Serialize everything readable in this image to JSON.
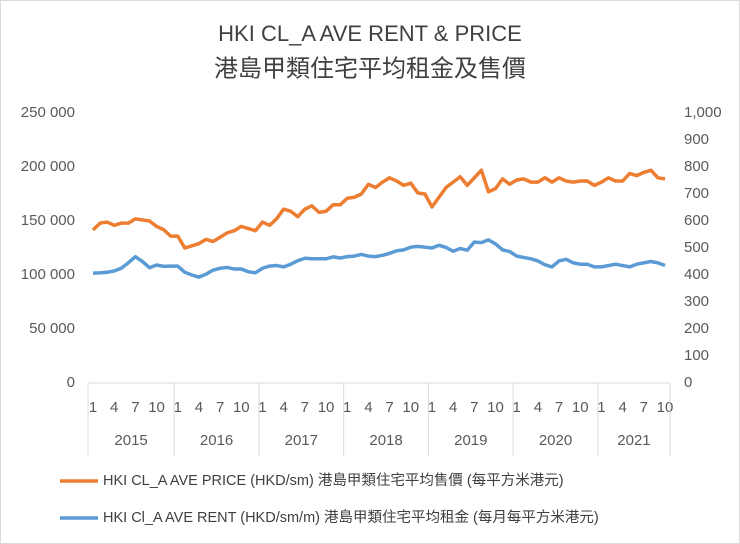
{
  "chart_data": {
    "type": "line",
    "title": "HKI CL_A AVE RENT & PRICE",
    "subtitle": "港島甲類住宅平均租金及售價",
    "categories": [
      "1",
      null,
      null,
      "4",
      null,
      null,
      "7",
      null,
      null,
      "10",
      null,
      null,
      "1",
      null,
      null,
      "4",
      null,
      null,
      "7",
      null,
      null,
      "10",
      null,
      null,
      "1",
      null,
      null,
      "4",
      null,
      null,
      "7",
      null,
      null,
      "10",
      null,
      null,
      "1",
      null,
      null,
      "4",
      null,
      null,
      "7",
      null,
      null,
      "10",
      null,
      null,
      "1",
      null,
      null,
      "4",
      null,
      null,
      "7",
      null,
      null,
      "10",
      null,
      null,
      "1",
      null,
      null,
      "4",
      null,
      null,
      "7",
      null,
      null,
      "10",
      null,
      null,
      "1",
      null,
      null,
      "4",
      null,
      null,
      "7",
      null,
      null,
      "10"
    ],
    "years": [
      "2015",
      "2016",
      "2017",
      "2018",
      "2019",
      "2020",
      "2021"
    ],
    "series": [
      {
        "name": "HKI CL_A AVE PRICE (HKD/sm) 港島甲類住宅平均售價 (每平方米港元)",
        "color": "#ed7d31",
        "values": [
          141700,
          148000,
          149000,
          146000,
          148000,
          148000,
          152000,
          151000,
          150000,
          145000,
          142000,
          136000,
          136000,
          125000,
          127000,
          129000,
          133000,
          131000,
          135000,
          139000,
          141000,
          145000,
          143000,
          141000,
          149000,
          146000,
          152000,
          161000,
          159000,
          154000,
          161000,
          164000,
          158000,
          159000,
          165000,
          165000,
          171000,
          172000,
          175000,
          184000,
          181000,
          186000,
          190000,
          187000,
          183000,
          185000,
          176000,
          175000,
          163000,
          172000,
          181000,
          186000,
          191000,
          183000,
          190000,
          197000,
          177000,
          180000,
          189000,
          184000,
          188000,
          189000,
          186000,
          186000,
          190000,
          186000,
          190000,
          187000,
          186000,
          187000,
          187000,
          183000,
          186000,
          190000,
          187000,
          187000,
          194000,
          192000,
          195000,
          197000,
          190000,
          189000
        ]
      },
      {
        "name": "HKI Cl_A AVE RENT (HKD/sm/m) 港島甲類住宅平均租金 (每月每平方米港元)",
        "color": "#5b9bd5",
        "axis": "y2",
        "values": [
          407,
          408,
          410,
          415,
          425,
          445,
          468,
          450,
          427,
          437,
          432,
          433,
          433,
          410,
          400,
          392,
          403,
          418,
          425,
          428,
          422,
          422,
          412,
          408,
          425,
          433,
          435,
          430,
          440,
          453,
          462,
          460,
          460,
          460,
          467,
          463,
          468,
          470,
          476,
          470,
          468,
          473,
          480,
          490,
          493,
          503,
          506,
          503,
          500,
          510,
          502,
          488,
          498,
          492,
          522,
          520,
          530,
          515,
          493,
          487,
          470,
          465,
          460,
          452,
          438,
          430,
          452,
          458,
          445,
          440,
          440,
          430,
          430,
          435,
          440,
          435,
          430,
          440,
          445,
          450,
          445,
          435
        ]
      }
    ],
    "ylim": [
      0,
      250000
    ],
    "yticks": [
      0,
      {
        "value": 50000,
        "label": "50 000"
      },
      {
        "value": 100000,
        "label": "100 000"
      },
      {
        "value": 150000,
        "label": "150 000"
      },
      {
        "value": 200000,
        "label": "200 000"
      },
      {
        "value": 250000,
        "label": "250 000"
      }
    ],
    "y2lim": [
      0,
      1000
    ],
    "y2ticks": [
      0,
      100,
      200,
      300,
      400,
      500,
      600,
      700,
      800,
      900,
      {
        "value": 1000,
        "label": "1,000"
      }
    ],
    "grid": false
  }
}
